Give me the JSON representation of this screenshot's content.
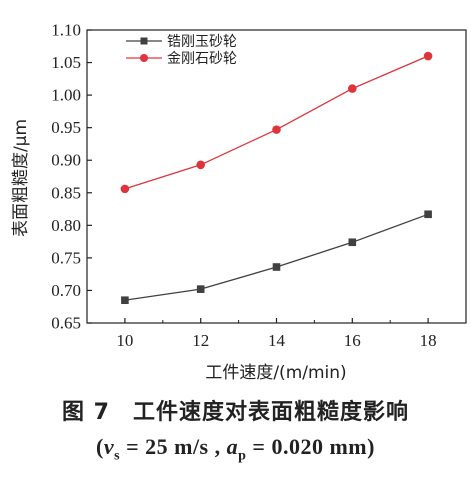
{
  "chart_data": {
    "type": "line",
    "x": [
      10,
      12,
      14,
      16,
      18
    ],
    "xlabel": "工件速度/(m/min)",
    "ylabel": "表面粗糙度/μm",
    "xlim": [
      9,
      19
    ],
    "ylim": [
      0.65,
      1.1
    ],
    "xticks": [
      "10",
      "12",
      "14",
      "16",
      "18"
    ],
    "yticks": [
      "0.65",
      "0.70",
      "0.75",
      "0.80",
      "0.85",
      "0.90",
      "0.95",
      "1.00",
      "1.05",
      "1.10"
    ],
    "grid": false,
    "legend_position": "top-left",
    "series": [
      {
        "name": "锆刚玉砂轮",
        "values": [
          0.685,
          0.702,
          0.736,
          0.774,
          0.817
        ],
        "color": "#404040",
        "marker": "square"
      },
      {
        "name": "金刚石砂轮",
        "values": [
          0.856,
          0.893,
          0.947,
          1.01,
          1.06
        ],
        "color": "#e0343c",
        "marker": "circle"
      }
    ]
  },
  "caption": {
    "title": "图 7　工件速度对表面粗糙度影响",
    "conditions_open": "(",
    "v_symbol": "v",
    "v_subscript": "s",
    "v_value": " = 25 m/s , ",
    "a_symbol": "a",
    "a_subscript": "p",
    "a_value": " = 0.020 mm",
    "conditions_close": ")"
  }
}
